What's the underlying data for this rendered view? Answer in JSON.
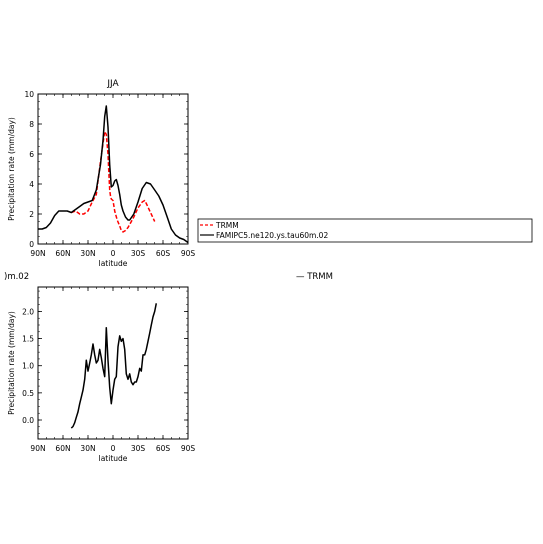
{
  "legend": {
    "entries": [
      {
        "label": "TRMM",
        "color": "#ff0000",
        "dash": true
      },
      {
        "label": "FAMIPC5.ne120.ys.tau60m.02",
        "color": "#000000",
        "dash": false
      }
    ]
  },
  "lower_panel": {
    "title_fragment": ")m.02",
    "right_label": "—  TRMM"
  },
  "chart_data": [
    {
      "type": "line",
      "title": "JJA",
      "xlabel": "latitude",
      "ylabel": "Precipitation rate (mm/day)",
      "x_ticks": [
        "90N",
        "60N",
        "30N",
        "0",
        "30S",
        "60S",
        "90S"
      ],
      "x_tick_values": [
        90,
        60,
        30,
        0,
        -30,
        -60,
        -90
      ],
      "y_ticks": [
        "0",
        "2",
        "4",
        "6",
        "8",
        "10"
      ],
      "ylim": [
        0,
        10
      ],
      "xlim": [
        90,
        -90
      ],
      "series": [
        {
          "name": "TRMM",
          "color": "#ff0000",
          "dash": true,
          "x": [
            50,
            45,
            40,
            35,
            30,
            25,
            20,
            18,
            15,
            12,
            10,
            8,
            6,
            5,
            4,
            3,
            2,
            0,
            -2,
            -5,
            -8,
            -10,
            -12,
            -15,
            -18,
            -20,
            -25,
            -30,
            -35,
            -38,
            -40,
            -45,
            -50
          ],
          "y": [
            2.1,
            2.2,
            2.0,
            2.0,
            2.2,
            2.8,
            3.3,
            4.2,
            5.5,
            6.7,
            7.5,
            7.3,
            6.0,
            4.8,
            3.6,
            3.2,
            3.0,
            2.9,
            2.2,
            1.6,
            1.2,
            0.9,
            0.8,
            0.9,
            1.1,
            1.3,
            1.8,
            2.4,
            2.8,
            2.9,
            2.7,
            2.1,
            1.5
          ]
        },
        {
          "name": "FAMIPC5.ne120.ys.tau60m.02",
          "color": "#000000",
          "dash": false,
          "x": [
            90,
            85,
            80,
            75,
            70,
            65,
            60,
            55,
            50,
            45,
            40,
            35,
            30,
            25,
            20,
            15,
            12,
            10,
            8,
            6,
            4,
            2,
            0,
            -2,
            -4,
            -6,
            -8,
            -10,
            -12,
            -15,
            -18,
            -20,
            -25,
            -30,
            -35,
            -40,
            -45,
            -50,
            -55,
            -60,
            -65,
            -70,
            -75,
            -80,
            -85,
            -90
          ],
          "y": [
            1.0,
            1.0,
            1.1,
            1.4,
            1.9,
            2.2,
            2.2,
            2.2,
            2.1,
            2.3,
            2.5,
            2.7,
            2.8,
            2.9,
            3.6,
            5.3,
            6.9,
            8.5,
            9.2,
            7.8,
            5.3,
            3.8,
            3.9,
            4.2,
            4.3,
            3.9,
            3.3,
            2.6,
            2.2,
            1.8,
            1.6,
            1.6,
            2.0,
            2.8,
            3.7,
            4.1,
            4.0,
            3.6,
            3.2,
            2.6,
            1.8,
            1.0,
            0.6,
            0.4,
            0.3,
            0.1
          ]
        }
      ]
    },
    {
      "type": "line",
      "title": "",
      "xlabel": "latitude",
      "ylabel": "Precipitation rate (mm/day)",
      "x_ticks": [
        "90N",
        "60N",
        "30N",
        "0",
        "30S",
        "60S",
        "90S"
      ],
      "x_tick_values": [
        90,
        60,
        30,
        0,
        -30,
        -60,
        -90
      ],
      "y_ticks": [
        "0.0",
        "0.5",
        "1.0",
        "1.5",
        "2.0"
      ],
      "ylim": [
        -0.35,
        2.45
      ],
      "xlim": [
        90,
        -90
      ],
      "series": [
        {
          "color": "#000000",
          "dash": false,
          "x": [
            50,
            48,
            46,
            44,
            42,
            40,
            38,
            36,
            34,
            32,
            30,
            28,
            26,
            24,
            22,
            20,
            18,
            16,
            14,
            12,
            10,
            8,
            6,
            4,
            2,
            0,
            -2,
            -4,
            -6,
            -8,
            -10,
            -12,
            -14,
            -16,
            -18,
            -20,
            -22,
            -24,
            -26,
            -28,
            -30,
            -32,
            -34,
            -36,
            -38,
            -40,
            -42,
            -44,
            -46,
            -48,
            -50,
            -52
          ],
          "y": [
            -0.15,
            -0.12,
            -0.05,
            0.05,
            0.15,
            0.3,
            0.42,
            0.55,
            0.75,
            1.1,
            0.9,
            1.05,
            1.2,
            1.4,
            1.2,
            1.05,
            1.1,
            1.3,
            1.15,
            0.95,
            0.8,
            1.7,
            1.1,
            0.6,
            0.3,
            0.55,
            0.75,
            0.8,
            1.35,
            1.55,
            1.45,
            1.5,
            1.3,
            0.85,
            0.75,
            0.85,
            0.7,
            0.65,
            0.7,
            0.7,
            0.8,
            0.95,
            0.9,
            1.2,
            1.2,
            1.3,
            1.45,
            1.6,
            1.75,
            1.9,
            2.0,
            2.15
          ]
        }
      ]
    }
  ]
}
